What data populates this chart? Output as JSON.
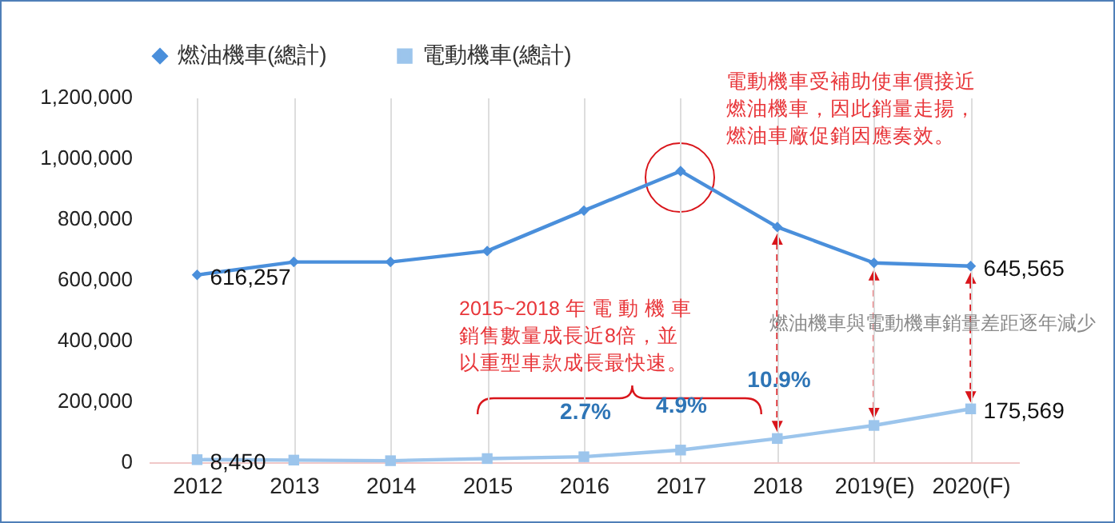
{
  "chart_data": {
    "type": "line",
    "categories": [
      "2012",
      "2013",
      "2014",
      "2015",
      "2016",
      "2017",
      "2018",
      "2019(E)",
      "2020(F)"
    ],
    "series": [
      {
        "name": "燃油機車(總計)",
        "color": "#4a8fdb",
        "marker": "diamond",
        "values": [
          616257,
          659000,
          659000,
          695000,
          828000,
          958000,
          774000,
          656000,
          645565
        ],
        "value_labels": [
          "616,257",
          null,
          null,
          null,
          null,
          null,
          null,
          null,
          "645,565"
        ]
      },
      {
        "name": "電動機車(總計)",
        "color": "#9cc5ec",
        "marker": "square",
        "values": [
          8450,
          7000,
          5000,
          12000,
          18000,
          40000,
          78000,
          121000,
          175569
        ],
        "value_labels": [
          "8,450",
          null,
          null,
          null,
          null,
          null,
          null,
          null,
          "175,569"
        ]
      }
    ],
    "ylim": [
      0,
      1200000
    ],
    "yticks": [
      0,
      {
        "value": 200000,
        "label": "200,000"
      },
      {
        "value": 400000,
        "label": "400,000"
      },
      {
        "value": 600000,
        "label": "600,000"
      },
      {
        "value": 800000,
        "label": "800,000"
      },
      {
        "value": 1000000,
        "label": "1,000,000"
      },
      {
        "value": 1200000,
        "label": "1,200,000"
      }
    ],
    "grid": "x",
    "legend": "top",
    "line_style": "solid",
    "annotations": [
      "電動機車受補助使車價接近燃油機車，因此銷量走揚，燃油車廠促銷因應奏效。",
      "2015~2018 年 電 動 機 車銷售數量成長近8倍，並以重型車款成長最快速。",
      "燃油機車與電動機車銷量差距逐年減少",
      "2.7%",
      "4.9%",
      "10.9%"
    ]
  }
}
